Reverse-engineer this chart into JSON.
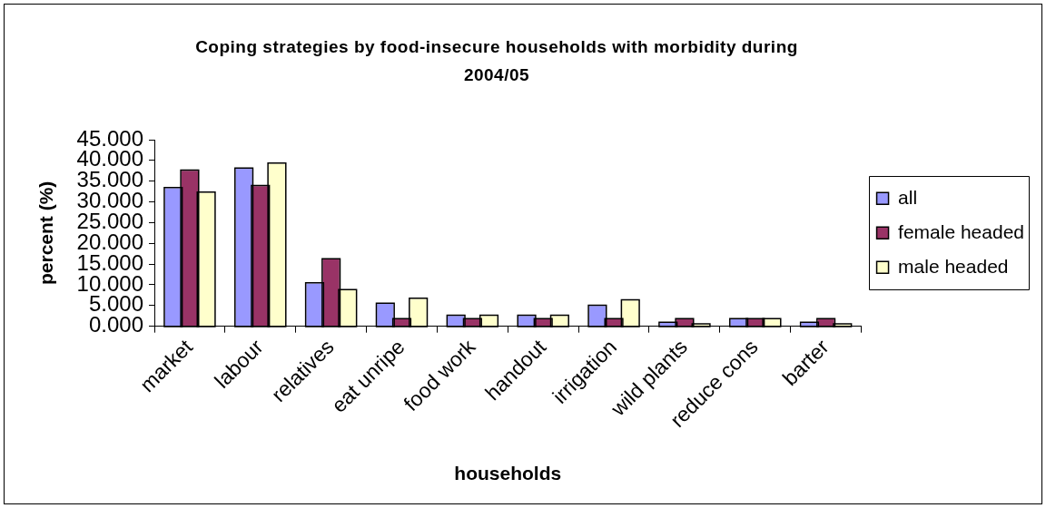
{
  "chart_data": {
    "type": "bar",
    "title": "Coping strategies by food-insecure households with morbidity during 2004/05",
    "xlabel": "households",
    "ylabel": "percent (%)",
    "categories": [
      "market",
      "labour",
      "relatives",
      "eat unripe",
      "food work",
      "handout",
      "irrigation",
      "wild plants",
      "reduce cons",
      "barter"
    ],
    "series": [
      {
        "name": "all",
        "color": "#9999ff",
        "values": [
          33.3,
          38.0,
          10.3,
          5.4,
          2.5,
          2.5,
          4.9,
          0.8,
          1.7,
          0.8
        ]
      },
      {
        "name": "female headed",
        "color": "#993366",
        "values": [
          37.5,
          33.8,
          16.1,
          1.7,
          1.7,
          1.7,
          1.7,
          1.7,
          1.7,
          1.7
        ]
      },
      {
        "name": "male headed",
        "color": "#ffffcc",
        "values": [
          32.2,
          39.2,
          8.7,
          6.6,
          2.5,
          2.5,
          6.2,
          0.4,
          1.7,
          0.4
        ]
      }
    ],
    "ylim": [
      0,
      45
    ],
    "yticks": [
      {
        "value": 0,
        "label": "0.000"
      },
      {
        "value": 5,
        "label": "5.000"
      },
      {
        "value": 10,
        "label": "10.000"
      },
      {
        "value": 15,
        "label": "15.000"
      },
      {
        "value": 20,
        "label": "20.000"
      },
      {
        "value": 25,
        "label": "25.000"
      },
      {
        "value": 30,
        "label": "30.000"
      },
      {
        "value": 35,
        "label": "35.000"
      },
      {
        "value": 40,
        "label": "40.000"
      },
      {
        "value": 45,
        "label": "45.000"
      }
    ],
    "grid": false,
    "legend": "right"
  }
}
